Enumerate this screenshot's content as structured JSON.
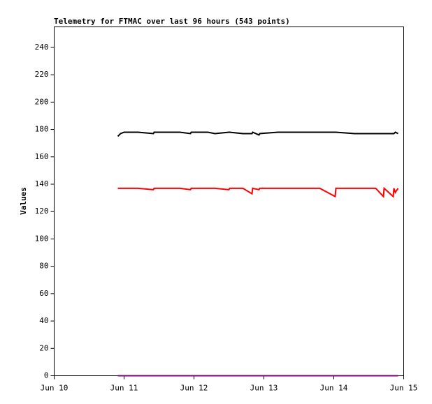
{
  "chart_data": {
    "type": "line",
    "title": "Telemetry for FTMAC over last 96 hours (543 points)",
    "y_label": "Values",
    "x": [
      10.91,
      10.95,
      11.0,
      11.2,
      11.42,
      11.43,
      11.6,
      11.8,
      11.95,
      11.96,
      12.2,
      12.3,
      12.5,
      12.51,
      12.7,
      12.83,
      12.84,
      12.93,
      12.94,
      13.2,
      13.5,
      13.8,
      14.02,
      14.03,
      14.3,
      14.6,
      14.71,
      14.72,
      14.85,
      14.86,
      14.88,
      14.92
    ],
    "series": [
      {
        "color": "#000000",
        "values": [
          175,
          177,
          178,
          178,
          177,
          178,
          178,
          178,
          177,
          178,
          178,
          177,
          178,
          178,
          177,
          177,
          178,
          176,
          177,
          178,
          178,
          178,
          178,
          178,
          177,
          177,
          177,
          177,
          177,
          177,
          178,
          177
        ]
      },
      {
        "color": "#ff0000",
        "values": [
          137,
          137,
          137,
          137,
          136,
          137,
          137,
          137,
          136,
          137,
          137,
          137,
          136,
          137,
          137,
          133,
          137,
          136,
          137,
          137,
          137,
          137,
          131,
          137,
          137,
          137,
          131,
          137,
          131,
          137,
          134,
          137
        ]
      },
      {
        "color": "#800080",
        "values": [
          0,
          0,
          0,
          0,
          0,
          0,
          0,
          0,
          0,
          0,
          0,
          0,
          0,
          0,
          0,
          0,
          0,
          0,
          0,
          0,
          0,
          0,
          0,
          0,
          0,
          0,
          0,
          0,
          0,
          0,
          0,
          0
        ]
      }
    ],
    "xlim": [
      10,
      15
    ],
    "xticks": [
      {
        "value": 10,
        "label": "Jun 10"
      },
      {
        "value": 11,
        "label": "Jun 11"
      },
      {
        "value": 12,
        "label": "Jun 12"
      },
      {
        "value": 13,
        "label": "Jun 13"
      },
      {
        "value": 14,
        "label": "Jun 14"
      },
      {
        "value": 15,
        "label": "Jun 15"
      }
    ],
    "ylim": [
      0,
      255
    ],
    "yticks": [
      0,
      20,
      40,
      60,
      80,
      100,
      120,
      140,
      160,
      180,
      200,
      220,
      240
    ],
    "grid": false
  }
}
